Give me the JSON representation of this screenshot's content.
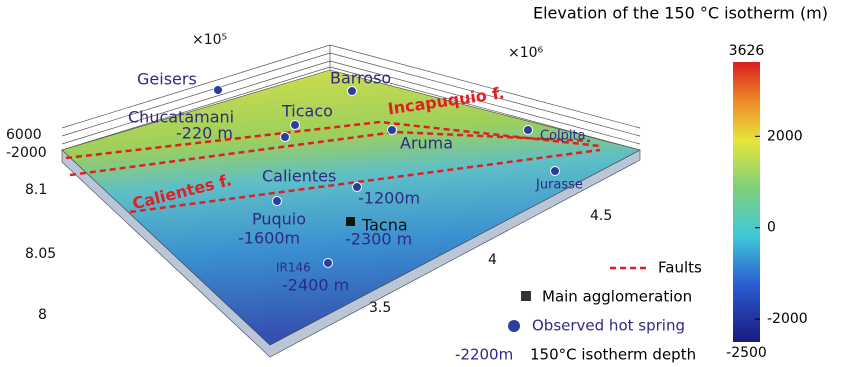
{
  "map": {
    "axes": {
      "left_scale": "×10⁵",
      "right_scale": "×10⁶",
      "z_top": "6000",
      "z_bottom": "-2000",
      "y_ticks": [
        "8.1",
        "8.05",
        "8"
      ],
      "x_ticks": [
        "3.5",
        "4",
        "4.5"
      ]
    },
    "places": [
      {
        "label": "Geisers"
      },
      {
        "label": "Barroso"
      },
      {
        "label": "Ticaco"
      },
      {
        "label": "Chucatamani"
      },
      {
        "label": "-220 m"
      },
      {
        "label": "Aruma"
      },
      {
        "label": "Colpita"
      },
      {
        "label": "Jurasse"
      },
      {
        "label": "Calientes"
      },
      {
        "label": "-1200m"
      },
      {
        "label": "Puquio"
      },
      {
        "label": "-1600m"
      },
      {
        "label": "IR146"
      },
      {
        "label": "-2400 m"
      }
    ],
    "city": {
      "label": "Tacna",
      "depth": "-2300 m"
    },
    "faults": [
      "Incapuquio f.",
      "Calientes f."
    ],
    "colorbar": {
      "title": "Elevation of the 150 °C isotherm (m)",
      "lim": [
        -2500,
        3626
      ],
      "ticks": [
        2000,
        0,
        -2000
      ]
    },
    "legend": {
      "faults": "Faults",
      "agglomeration": "Main agglomeration",
      "hot_spring": "Observed hot spring",
      "depth_example": "-2200m",
      "depth_text": "150°C isotherm depth"
    }
  }
}
